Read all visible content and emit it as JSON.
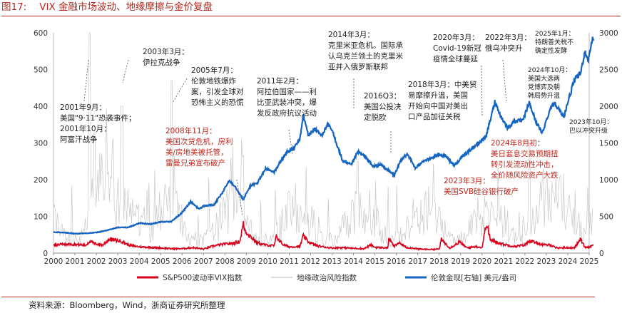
{
  "figure": {
    "label": "图17:",
    "title": "VIX 金融市场波动、地缘摩擦与金价复盘",
    "source": "资料来源：Bloomberg，Wind，浙商证券研究所整理"
  },
  "chart_data": {
    "type": "line",
    "title": "",
    "x_range": [
      2000,
      2025
    ],
    "x_ticks": [
      "2000",
      "2001",
      "2002",
      "2003",
      "2004",
      "2005",
      "2006",
      "2007",
      "2008",
      "2009",
      "2010",
      "2011",
      "2012",
      "2013",
      "2014",
      "2015",
      "2016",
      "2017",
      "2018",
      "2019",
      "2020",
      "2021",
      "2022",
      "2023",
      "2024",
      "2025"
    ],
    "y_left": {
      "range": [
        0,
        600
      ],
      "ticks": [
        0,
        100,
        200,
        300,
        400,
        500,
        600
      ]
    },
    "y_right": {
      "range": [
        0,
        3000
      ],
      "ticks": [
        0,
        500,
        1000,
        1500,
        2000,
        2500,
        3000
      ],
      "label": ""
    },
    "legend_position": "bottom",
    "series": [
      {
        "name": "S&P500波动率VIX指数",
        "axis": "left",
        "color": "#d6001c",
        "points": [
          [
            2000.0,
            22
          ],
          [
            2000.5,
            24
          ],
          [
            2001.0,
            24
          ],
          [
            2001.5,
            21
          ],
          [
            2001.7,
            33
          ],
          [
            2001.9,
            26
          ],
          [
            2002.3,
            22
          ],
          [
            2002.6,
            38
          ],
          [
            2002.8,
            36
          ],
          [
            2003.2,
            32
          ],
          [
            2003.5,
            22
          ],
          [
            2004.0,
            17
          ],
          [
            2004.5,
            16
          ],
          [
            2005.0,
            14
          ],
          [
            2005.5,
            12
          ],
          [
            2006.0,
            12
          ],
          [
            2006.5,
            15
          ],
          [
            2007.0,
            11
          ],
          [
            2007.5,
            20
          ],
          [
            2007.9,
            24
          ],
          [
            2008.3,
            26
          ],
          [
            2008.7,
            32
          ],
          [
            2008.85,
            80
          ],
          [
            2008.95,
            60
          ],
          [
            2009.2,
            45
          ],
          [
            2009.5,
            28
          ],
          [
            2009.9,
            22
          ],
          [
            2010.3,
            20
          ],
          [
            2010.4,
            45
          ],
          [
            2010.7,
            24
          ],
          [
            2011.0,
            17
          ],
          [
            2011.5,
            18
          ],
          [
            2011.65,
            47
          ],
          [
            2011.9,
            30
          ],
          [
            2012.3,
            20
          ],
          [
            2012.7,
            16
          ],
          [
            2013.0,
            14
          ],
          [
            2013.5,
            15
          ],
          [
            2014.0,
            13
          ],
          [
            2014.5,
            12
          ],
          [
            2014.8,
            22
          ],
          [
            2015.0,
            16
          ],
          [
            2015.6,
            14
          ],
          [
            2015.65,
            40
          ],
          [
            2015.9,
            18
          ],
          [
            2016.1,
            28
          ],
          [
            2016.5,
            15
          ],
          [
            2016.9,
            13
          ],
          [
            2017.0,
            11
          ],
          [
            2017.6,
            10
          ],
          [
            2018.0,
            11
          ],
          [
            2018.1,
            37
          ],
          [
            2018.5,
            14
          ],
          [
            2018.95,
            30
          ],
          [
            2019.3,
            14
          ],
          [
            2019.7,
            18
          ],
          [
            2020.0,
            15
          ],
          [
            2020.2,
            82
          ],
          [
            2020.4,
            35
          ],
          [
            2020.8,
            28
          ],
          [
            2021.0,
            24
          ],
          [
            2021.5,
            18
          ],
          [
            2022.0,
            22
          ],
          [
            2022.2,
            34
          ],
          [
            2022.5,
            28
          ],
          [
            2022.9,
            22
          ],
          [
            2023.2,
            22
          ],
          [
            2023.5,
            14
          ],
          [
            2023.9,
            15
          ],
          [
            2024.3,
            14
          ],
          [
            2024.6,
            38
          ],
          [
            2024.8,
            16
          ],
          [
            2025.0,
            17
          ],
          [
            2025.2,
            22
          ]
        ]
      },
      {
        "name": "地缘政治风险指数",
        "axis": "left",
        "color": "#c8c8c8",
        "peaks": [
          {
            "x": 2001.7,
            "y": 600
          },
          {
            "x": 2003.2,
            "y": 400
          },
          {
            "x": 2001.9,
            "y": 330
          },
          {
            "x": 2005.5,
            "y": 470
          },
          {
            "x": 2014.2,
            "y": 250
          },
          {
            "x": 2022.2,
            "y": 300
          }
        ]
      },
      {
        "name": "伦敦金现[右轴] 美元/盎司",
        "axis": "right",
        "color": "#1565c0",
        "points": [
          [
            2000.0,
            285
          ],
          [
            2000.5,
            280
          ],
          [
            2001.0,
            265
          ],
          [
            2001.5,
            270
          ],
          [
            2002.0,
            280
          ],
          [
            2002.5,
            310
          ],
          [
            2003.0,
            350
          ],
          [
            2003.5,
            350
          ],
          [
            2004.0,
            410
          ],
          [
            2004.5,
            395
          ],
          [
            2005.0,
            425
          ],
          [
            2005.5,
            430
          ],
          [
            2006.0,
            550
          ],
          [
            2006.4,
            700
          ],
          [
            2006.8,
            600
          ],
          [
            2007.0,
            640
          ],
          [
            2007.5,
            660
          ],
          [
            2007.9,
            830
          ],
          [
            2008.2,
            990
          ],
          [
            2008.5,
            900
          ],
          [
            2008.85,
            730
          ],
          [
            2009.2,
            920
          ],
          [
            2009.5,
            950
          ],
          [
            2009.9,
            1150
          ],
          [
            2010.3,
            1100
          ],
          [
            2010.6,
            1250
          ],
          [
            2010.9,
            1380
          ],
          [
            2011.2,
            1420
          ],
          [
            2011.5,
            1550
          ],
          [
            2011.65,
            1880
          ],
          [
            2011.9,
            1600
          ],
          [
            2012.2,
            1700
          ],
          [
            2012.5,
            1600
          ],
          [
            2012.8,
            1750
          ],
          [
            2013.0,
            1670
          ],
          [
            2013.5,
            1250
          ],
          [
            2013.9,
            1200
          ],
          [
            2014.2,
            1380
          ],
          [
            2014.6,
            1300
          ],
          [
            2014.9,
            1180
          ],
          [
            2015.3,
            1200
          ],
          [
            2015.9,
            1060
          ],
          [
            2016.2,
            1250
          ],
          [
            2016.5,
            1360
          ],
          [
            2016.9,
            1150
          ],
          [
            2017.2,
            1250
          ],
          [
            2017.6,
            1280
          ],
          [
            2018.0,
            1340
          ],
          [
            2018.3,
            1330
          ],
          [
            2018.7,
            1190
          ],
          [
            2019.0,
            1290
          ],
          [
            2019.5,
            1420
          ],
          [
            2019.9,
            1510
          ],
          [
            2020.2,
            1600
          ],
          [
            2020.6,
            2060
          ],
          [
            2020.9,
            1850
          ],
          [
            2021.2,
            1700
          ],
          [
            2021.5,
            1800
          ],
          [
            2021.9,
            1800
          ],
          [
            2022.2,
            2050
          ],
          [
            2022.5,
            1800
          ],
          [
            2022.8,
            1630
          ],
          [
            2023.2,
            1980
          ],
          [
            2023.4,
            2050
          ],
          [
            2023.8,
            1850
          ],
          [
            2024.0,
            2050
          ],
          [
            2024.3,
            2350
          ],
          [
            2024.6,
            2450
          ],
          [
            2024.8,
            2750
          ],
          [
            2024.95,
            2620
          ],
          [
            2025.1,
            2850
          ],
          [
            2025.2,
            2950
          ]
        ]
      }
    ],
    "annotations": [
      {
        "id": "a2001",
        "lines": [
          "2001年9月：",
          "美国\"9·11\"恐袭事件；",
          "2001年10月：",
          "阿富汗战争"
        ],
        "color": "#222222"
      },
      {
        "id": "a2003",
        "lines": [
          "2003年3月：",
          "伊拉克战争"
        ],
        "color": "#222222"
      },
      {
        "id": "a2005",
        "lines": [
          "2005年7月：",
          "伦敦地铁爆炸",
          "案，引发全球对",
          "恐怖主义的恐慌"
        ],
        "color": "#222222"
      },
      {
        "id": "a2008",
        "lines": [
          "2008年11月：",
          "美国次贷危机，房利",
          "美/房地美被托管，",
          "雷曼兄弟宣布破产"
        ],
        "color": "#c0261c"
      },
      {
        "id": "a2011",
        "lines": [
          "2011年2月：",
          "阿拉伯国家——利",
          "比亚武装冲突，爆",
          "发反政府抗议活动"
        ],
        "color": "#222222"
      },
      {
        "id": "a2014",
        "lines": [
          "2014年3月：",
          "克里米亚危机。国际承",
          "认乌克兰领土的克里米",
          "亚并入俄罗斯联邦"
        ],
        "color": "#222222"
      },
      {
        "id": "a2016",
        "lines": [
          "2016Q3：",
          "美国公投决",
          "定脱欧"
        ],
        "color": "#222222"
      },
      {
        "id": "a2018",
        "lines": [
          "2018年3月：中美贸",
          "易摩擦升温，美国",
          "开始向中国对美出",
          "口产品加征关税"
        ],
        "color": "#222222"
      },
      {
        "id": "a2020",
        "lines": [
          "2020年3月：",
          "Covid-19新冠",
          "疫情全球蔓延"
        ],
        "color": "#222222"
      },
      {
        "id": "a2022",
        "lines": [
          "2022年3月：",
          "俄乌冲突升"
        ],
        "color": "#222222"
      },
      {
        "id": "a2025",
        "lines": [
          "2025年1月：",
          "特朗普关税不",
          "确定性发酵"
        ],
        "color": "#222222"
      },
      {
        "id": "a2024oct",
        "lines": [
          "2024年10月：",
          "美国大选两",
          "党博弈及朝",
          "韩局势升温"
        ],
        "color": "#222222"
      },
      {
        "id": "a2023oct",
        "lines": [
          "2023年10月：",
          "巴以冲突升级"
        ],
        "color": "#222222"
      },
      {
        "id": "a2024aug",
        "lines": [
          "2024年8月初：",
          "美日套息交易预期扭",
          "转引发流动性冲击，",
          "全价随风险资产大跌"
        ],
        "color": "#c0261c"
      },
      {
        "id": "a2023mar",
        "lines": [
          "2023年3月：",
          "美国SVB硅谷银行破产"
        ],
        "color": "#c0261c"
      }
    ]
  }
}
